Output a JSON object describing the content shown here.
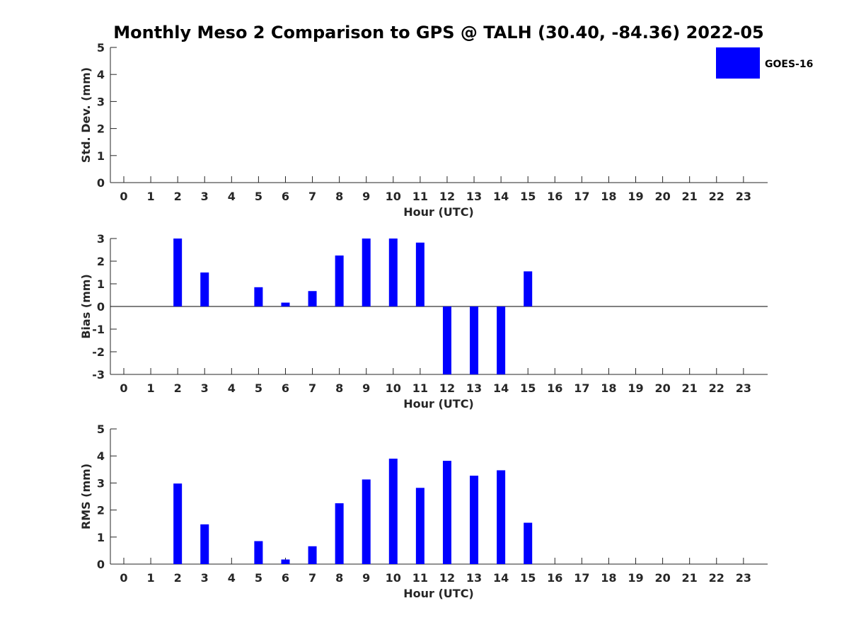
{
  "figure": {
    "title": "Monthly Meso 2 Comparison to GPS @ TALH (30.40, -84.36) 2022-05"
  },
  "legend": {
    "label": "GOES-16",
    "color": "#0000ff",
    "placement": "top-right"
  },
  "chart_data": [
    {
      "type": "bar",
      "xlabel": "Hour (UTC)",
      "ylabel": "Std. Dev. (mm)",
      "categories": [
        "0",
        "1",
        "2",
        "3",
        "4",
        "5",
        "6",
        "7",
        "8",
        "9",
        "10",
        "11",
        "12",
        "13",
        "14",
        "15",
        "16",
        "17",
        "18",
        "19",
        "20",
        "21",
        "22",
        "23"
      ],
      "yticks": [
        "0",
        "1",
        "2",
        "3",
        "4",
        "5"
      ],
      "ylim": [
        0,
        5
      ],
      "grid": false,
      "series": [
        {
          "name": "GOES-16",
          "color": "#0000ff",
          "values": [
            null,
            null,
            null,
            null,
            null,
            null,
            null,
            null,
            null,
            null,
            null,
            null,
            null,
            null,
            null,
            null,
            null,
            null,
            null,
            null,
            null,
            null,
            null,
            null
          ]
        }
      ]
    },
    {
      "type": "bar",
      "xlabel": "Hour (UTC)",
      "ylabel": "Bias (mm)",
      "categories": [
        "0",
        "1",
        "2",
        "3",
        "4",
        "5",
        "6",
        "7",
        "8",
        "9",
        "10",
        "11",
        "12",
        "13",
        "14",
        "15",
        "16",
        "17",
        "18",
        "19",
        "20",
        "21",
        "22",
        "23"
      ],
      "yticks": [
        "-3",
        "-2",
        "-1",
        "0",
        "1",
        "2",
        "3"
      ],
      "ylim": [
        -3,
        3
      ],
      "grid": false,
      "zero_line": true,
      "series": [
        {
          "name": "GOES-16",
          "color": "#0000ff",
          "values": [
            null,
            null,
            3.0,
            1.5,
            null,
            0.85,
            0.17,
            0.68,
            2.25,
            3.0,
            3.0,
            2.82,
            -3.0,
            -3.0,
            -3.0,
            1.55,
            null,
            null,
            null,
            null,
            null,
            null,
            null,
            null
          ]
        }
      ]
    },
    {
      "type": "bar",
      "xlabel": "Hour (UTC)",
      "ylabel": "RMS (mm)",
      "categories": [
        "0",
        "1",
        "2",
        "3",
        "4",
        "5",
        "6",
        "7",
        "8",
        "9",
        "10",
        "11",
        "12",
        "13",
        "14",
        "15",
        "16",
        "17",
        "18",
        "19",
        "20",
        "21",
        "22",
        "23"
      ],
      "yticks": [
        "0",
        "1",
        "2",
        "3",
        "4",
        "5"
      ],
      "ylim": [
        0,
        5
      ],
      "grid": false,
      "series": [
        {
          "name": "GOES-16",
          "color": "#0000ff",
          "values": [
            null,
            null,
            2.98,
            1.47,
            null,
            0.85,
            0.17,
            0.66,
            2.25,
            3.13,
            3.9,
            2.82,
            3.82,
            3.27,
            3.47,
            1.53,
            null,
            null,
            null,
            null,
            null,
            null,
            null,
            null
          ]
        }
      ]
    }
  ]
}
